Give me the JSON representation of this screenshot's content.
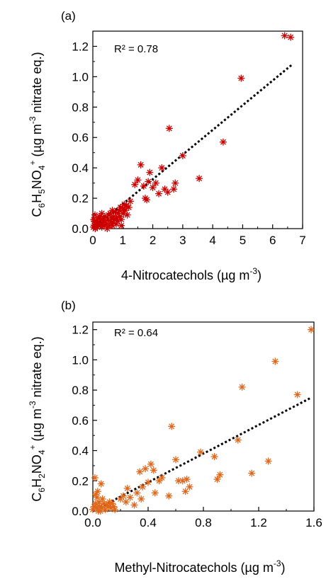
{
  "chart_data": [
    {
      "type": "scatter",
      "panel_label": "(a)",
      "annotation": "R² = 0.78",
      "xlabel": {
        "main": "4-Nitrocatechols (µg m",
        "sup": "-3",
        "tail": ")"
      },
      "ylabel": {
        "p1": "C",
        "s1": "6",
        "p2": "H",
        "s2": "5",
        "p3": "NO",
        "s3": "4",
        "sup": "+",
        "p4": " (µg m",
        "sup2": "-3",
        "p5": " nitrate eq.)"
      },
      "xlim": [
        0,
        7
      ],
      "ylim": [
        0,
        1.3
      ],
      "xticks": [
        "0",
        "1",
        "2",
        "3",
        "4",
        "5",
        "6",
        "7"
      ],
      "yticks": [
        "0.0",
        "0.2",
        "0.4",
        "0.6",
        "0.8",
        "1.0",
        "1.2"
      ],
      "marker_color": "#cc0000",
      "marker": "asterisk",
      "fit_line": {
        "x": [
          0,
          6.65
        ],
        "y": [
          0.0,
          1.08
        ]
      },
      "points": [
        [
          0.02,
          0.01
        ],
        [
          0.05,
          0.02
        ],
        [
          0.08,
          0.0
        ],
        [
          0.1,
          0.03
        ],
        [
          0.12,
          0.05
        ],
        [
          0.15,
          0.01
        ],
        [
          0.18,
          0.07
        ],
        [
          0.2,
          0.03
        ],
        [
          0.25,
          0.02
        ],
        [
          0.28,
          0.06
        ],
        [
          0.3,
          0.01
        ],
        [
          0.32,
          0.04
        ],
        [
          0.35,
          0.07
        ],
        [
          0.38,
          0.02
        ],
        [
          0.4,
          0.08
        ],
        [
          0.42,
          0.05
        ],
        [
          0.45,
          0.03
        ],
        [
          0.5,
          0.06
        ],
        [
          0.52,
          0.09
        ],
        [
          0.55,
          0.02
        ],
        [
          0.58,
          0.1
        ],
        [
          0.6,
          0.05
        ],
        [
          0.62,
          0.07
        ],
        [
          0.65,
          0.12
        ],
        [
          0.68,
          0.04
        ],
        [
          0.7,
          0.08
        ],
        [
          0.72,
          0.06
        ],
        [
          0.75,
          0.11
        ],
        [
          0.78,
          0.03
        ],
        [
          0.8,
          0.07
        ],
        [
          0.82,
          0.05
        ],
        [
          0.85,
          0.1
        ],
        [
          0.88,
          0.12
        ],
        [
          0.9,
          0.08
        ],
        [
          0.92,
          0.14
        ],
        [
          0.95,
          0.06
        ],
        [
          1.0,
          0.13
        ],
        [
          1.02,
          0.1
        ],
        [
          1.05,
          0.16
        ],
        [
          1.08,
          0.12
        ],
        [
          1.12,
          0.15
        ],
        [
          1.15,
          0.09
        ],
        [
          1.2,
          0.14
        ],
        [
          1.25,
          0.18
        ],
        [
          0.03,
          0.06
        ],
        [
          0.07,
          0.09
        ],
        [
          0.22,
          0.08
        ],
        [
          0.48,
          0.0
        ],
        [
          0.05,
          0.05
        ],
        [
          0.15,
          0.04
        ],
        [
          0.3,
          0.1
        ],
        [
          0.65,
          0.02
        ],
        [
          0.95,
          0.02
        ],
        [
          1.4,
          0.29
        ],
        [
          1.5,
          0.32
        ],
        [
          1.6,
          0.42
        ],
        [
          1.7,
          0.28
        ],
        [
          1.75,
          0.2
        ],
        [
          1.8,
          0.19
        ],
        [
          1.85,
          0.31
        ],
        [
          1.9,
          0.37
        ],
        [
          2.0,
          0.27
        ],
        [
          2.1,
          0.3
        ],
        [
          2.2,
          0.23
        ],
        [
          2.3,
          0.4
        ],
        [
          2.4,
          0.26
        ],
        [
          2.5,
          0.24
        ],
        [
          2.55,
          0.66
        ],
        [
          2.7,
          0.26
        ],
        [
          2.75,
          0.3
        ],
        [
          3.0,
          0.48
        ],
        [
          3.55,
          0.33
        ],
        [
          4.35,
          0.57
        ],
        [
          4.95,
          0.99
        ],
        [
          6.4,
          1.27
        ],
        [
          6.6,
          1.26
        ]
      ]
    },
    {
      "type": "scatter",
      "panel_label": "(b)",
      "annotation": "R² = 0.64",
      "xlabel": {
        "main": "Methyl-Nitrocatechols (µg m",
        "sup": "-3",
        "tail": ")"
      },
      "ylabel": {
        "p1": "C",
        "s1": "6",
        "p2": "H",
        "s2": "2",
        "p3": "NO",
        "s3": "4",
        "sup": "+",
        "p4": " (µg m",
        "sup2": "-3",
        "p5": " nitrate eq.)"
      },
      "xlim": [
        0,
        1.6
      ],
      "ylim": [
        0,
        1.25
      ],
      "xticks": [
        "0.0",
        "0.4",
        "0.8",
        "1.2",
        "1.6"
      ],
      "yticks": [
        "0.0",
        "0.2",
        "0.4",
        "0.6",
        "0.8",
        "1.0",
        "1.2"
      ],
      "marker_color": "#e0661a",
      "marker": "asterisk",
      "fit_line": {
        "x": [
          0,
          1.58
        ],
        "y": [
          0.0,
          0.75
        ]
      },
      "points": [
        [
          0.0,
          0.01
        ],
        [
          0.01,
          0.03
        ],
        [
          0.015,
          0.22
        ],
        [
          0.02,
          0.05
        ],
        [
          0.025,
          0.02
        ],
        [
          0.03,
          0.09
        ],
        [
          0.035,
          0.13
        ],
        [
          0.04,
          0.0
        ],
        [
          0.045,
          0.06
        ],
        [
          0.05,
          0.03
        ],
        [
          0.06,
          0.18
        ],
        [
          0.065,
          0.02
        ],
        [
          0.07,
          0.08
        ],
        [
          0.08,
          0.05
        ],
        [
          0.09,
          0.01
        ],
        [
          0.1,
          0.04
        ],
        [
          0.11,
          0.03
        ],
        [
          0.12,
          0.06
        ],
        [
          0.13,
          0.02
        ],
        [
          0.14,
          0.05
        ],
        [
          0.15,
          0.03
        ],
        [
          0.16,
          0.01
        ],
        [
          0.02,
          0.11
        ],
        [
          0.055,
          0.0
        ],
        [
          0.2,
          0.08
        ],
        [
          0.22,
          0.1
        ],
        [
          0.24,
          0.06
        ],
        [
          0.25,
          0.15
        ],
        [
          0.27,
          0.09
        ],
        [
          0.3,
          0.04
        ],
        [
          0.32,
          0.12
        ],
        [
          0.34,
          0.26
        ],
        [
          0.35,
          0.08
        ],
        [
          0.36,
          0.16
        ],
        [
          0.38,
          0.28
        ],
        [
          0.4,
          0.19
        ],
        [
          0.42,
          0.31
        ],
        [
          0.44,
          0.27
        ],
        [
          0.45,
          0.12
        ],
        [
          0.48,
          0.2
        ],
        [
          0.5,
          0.22
        ],
        [
          0.55,
          0.1
        ],
        [
          0.57,
          0.56
        ],
        [
          0.6,
          0.34
        ],
        [
          0.62,
          0.2
        ],
        [
          0.65,
          0.2
        ],
        [
          0.67,
          0.13
        ],
        [
          0.68,
          0.21
        ],
        [
          0.7,
          0.16
        ],
        [
          0.78,
          0.39
        ],
        [
          0.88,
          0.36
        ],
        [
          0.9,
          0.21
        ],
        [
          0.92,
          0.24
        ],
        [
          1.05,
          0.47
        ],
        [
          1.08,
          0.82
        ],
        [
          1.15,
          0.25
        ],
        [
          1.27,
          0.33
        ],
        [
          1.32,
          0.99
        ],
        [
          1.48,
          0.77
        ],
        [
          1.58,
          1.2
        ]
      ]
    }
  ]
}
